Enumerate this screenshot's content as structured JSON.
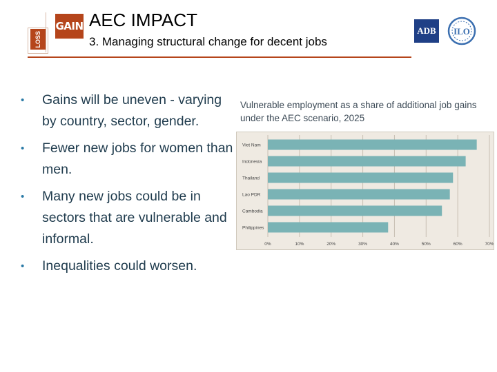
{
  "header": {
    "title": "AEC IMPACT",
    "subtitle": "3. Managing structural change for decent jobs",
    "logo_gain": "GAIN",
    "logo_loss": "LOSS",
    "logo_adb": "ADB",
    "logo_ilo": "ILO"
  },
  "bullets": [
    "Gains will be uneven - varying by country, sector, gender.",
    "Fewer new jobs for women than men.",
    "Many new jobs could be in sectors that are vulnerable and informal.",
    "Inequalities could worsen."
  ],
  "colors": {
    "accent": "#b5451b",
    "bar": "#7ab3b5",
    "chart_bg": "#efeae2",
    "bullet_text": "#1f3b4d"
  },
  "chart_data": {
    "type": "bar",
    "orientation": "horizontal",
    "title": "Vulnerable employment as a share of additional job gains under the AEC scenario, 2025",
    "categories": [
      "Viet Nam",
      "Indonesia",
      "Thailand",
      "Lao PDR",
      "Cambodia",
      "Philippines"
    ],
    "values": [
      66,
      62.5,
      58.5,
      57.5,
      55,
      38
    ],
    "ticks": [
      "0%",
      "10%",
      "20%",
      "30%",
      "40%",
      "50%",
      "60%",
      "70%"
    ],
    "xlim": [
      0,
      70
    ],
    "grid": true,
    "legend": "none"
  }
}
